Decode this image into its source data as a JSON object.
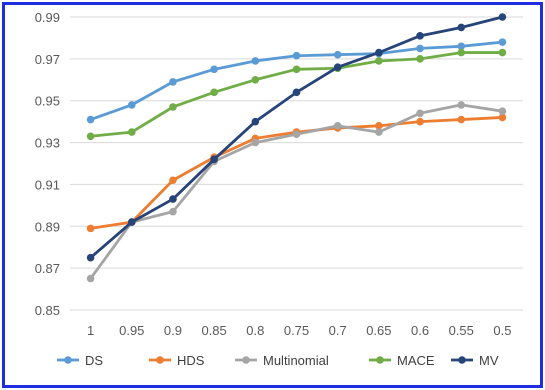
{
  "chart_data": {
    "type": "line",
    "title": "",
    "xlabel": "",
    "ylabel": "",
    "categories": [
      "1",
      "0.95",
      "0.9",
      "0.85",
      "0.8",
      "0.75",
      "0.7",
      "0.65",
      "0.6",
      "0.55",
      "0.5"
    ],
    "ylim": [
      0.85,
      0.99
    ],
    "yticks": [
      "0.85",
      "0.87",
      "0.89",
      "0.91",
      "0.93",
      "0.95",
      "0.97",
      "0.99"
    ],
    "grid": true,
    "legend_position": "bottom",
    "series": [
      {
        "name": "DS",
        "color": "#5b9bd5",
        "values": [
          0.941,
          0.948,
          0.959,
          0.965,
          0.969,
          0.9715,
          0.972,
          0.9725,
          0.975,
          0.976,
          0.978
        ]
      },
      {
        "name": "HDS",
        "color": "#ed7d31",
        "values": [
          0.889,
          0.892,
          0.912,
          0.923,
          0.932,
          0.935,
          0.937,
          0.938,
          0.94,
          0.941,
          0.942
        ]
      },
      {
        "name": "Multinomial",
        "color": "#a5a5a5",
        "values": [
          0.865,
          0.892,
          0.897,
          0.921,
          0.93,
          0.934,
          0.938,
          0.935,
          0.944,
          0.948,
          0.945
        ]
      },
      {
        "name": "MACE",
        "color": "#70ad47",
        "values": [
          0.933,
          0.935,
          0.947,
          0.954,
          0.96,
          0.965,
          0.9655,
          0.969,
          0.97,
          0.973,
          0.973
        ]
      },
      {
        "name": "MV",
        "color": "#264478",
        "values": [
          0.875,
          0.892,
          0.903,
          0.922,
          0.94,
          0.954,
          0.966,
          0.973,
          0.981,
          0.985,
          0.99
        ]
      }
    ]
  }
}
